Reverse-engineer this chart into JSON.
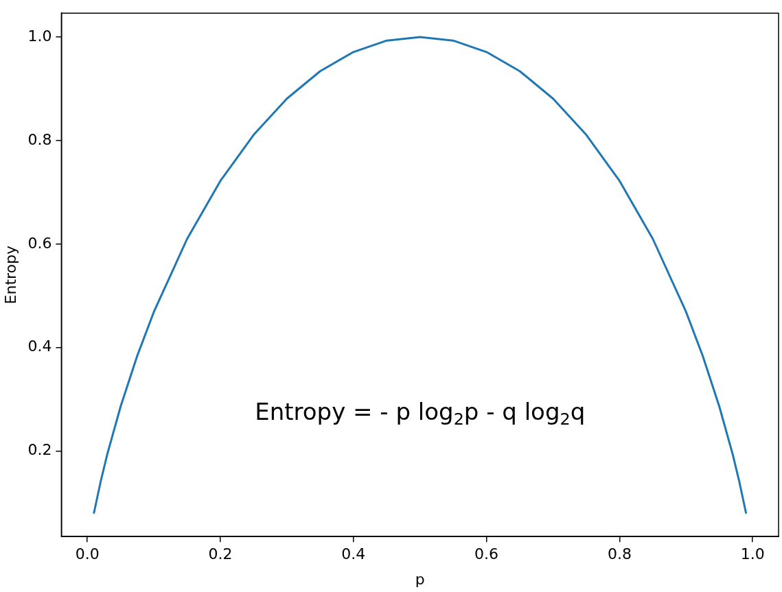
{
  "chart_data": {
    "type": "line",
    "xlabel": "p",
    "ylabel": "Entropy",
    "x": [
      0.01,
      0.02,
      0.03,
      0.05,
      0.075,
      0.1,
      0.15,
      0.2,
      0.25,
      0.3,
      0.35,
      0.4,
      0.45,
      0.5,
      0.55,
      0.6,
      0.65,
      0.7,
      0.75,
      0.8,
      0.85,
      0.9,
      0.925,
      0.95,
      0.97,
      0.98,
      0.99
    ],
    "series": [
      {
        "color": "#1f77b4",
        "values": [
          0.081,
          0.141,
          0.194,
          0.286,
          0.384,
          0.469,
          0.61,
          0.722,
          0.811,
          0.881,
          0.934,
          0.971,
          0.993,
          1.0,
          0.993,
          0.971,
          0.934,
          0.881,
          0.811,
          0.722,
          0.61,
          0.469,
          0.384,
          0.286,
          0.194,
          0.141,
          0.081
        ]
      }
    ],
    "xlim": [
      -0.039,
      1.039
    ],
    "ylim": [
      0.035,
      1.046
    ],
    "xticks": [
      {
        "value": 0,
        "label": "0.0"
      },
      0.2,
      0.4,
      0.6,
      0.8,
      {
        "value": 1,
        "label": "1.0"
      }
    ],
    "yticks": [
      0.2,
      0.4,
      0.6,
      0.8,
      {
        "value": 1,
        "label": "1.0"
      }
    ],
    "grid": false,
    "legend": false,
    "marker": "none",
    "line_style": "solid",
    "annotations": [
      "Entropy = - p log$_{2}$p - q log$_{2}$q"
    ]
  }
}
